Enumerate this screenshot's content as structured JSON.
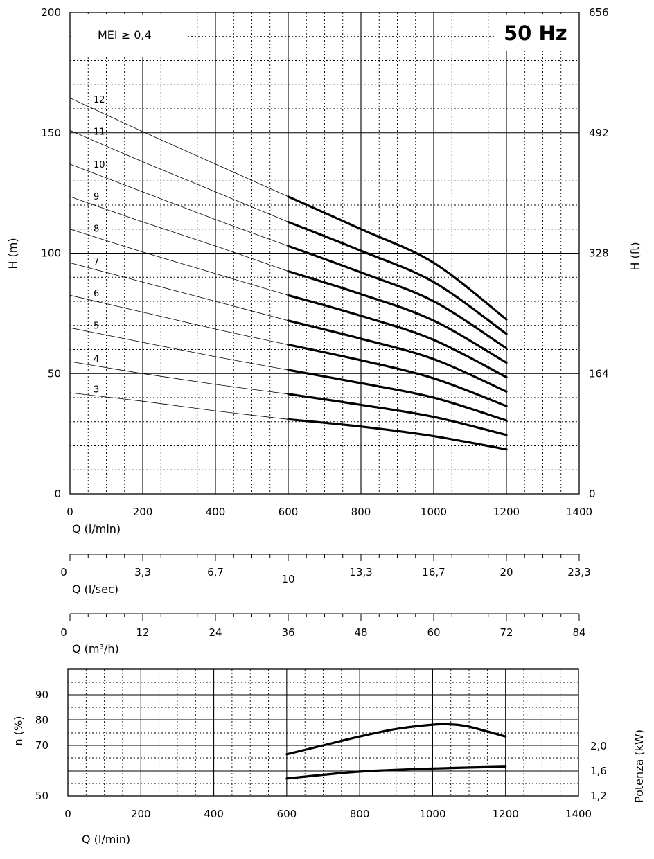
{
  "chart_data": [
    {
      "id": "head",
      "type": "line",
      "title": "50 Hz",
      "annotation": "MEI ≥ 0,4",
      "xlabel": "Q (l/min)",
      "ylabel": "H (m)",
      "y2label": "H (ft)",
      "xlim": [
        0,
        1400
      ],
      "ylim": [
        0,
        200
      ],
      "xticks": [
        0,
        200,
        400,
        600,
        800,
        1000,
        1200,
        1400
      ],
      "yticks": [
        0,
        50,
        100,
        150,
        200
      ],
      "y2ticks": [
        {
          "value": 0,
          "label": "0"
        },
        {
          "value": 50,
          "label": "164"
        },
        {
          "value": 100,
          "label": "328"
        },
        {
          "value": 150,
          "label": "492"
        },
        {
          "value": 200,
          "label": "656"
        }
      ],
      "operating_range": [
        600,
        1200
      ],
      "series": [
        {
          "name": "3",
          "x": [
            0,
            200,
            400,
            600,
            800,
            1000,
            1200
          ],
          "values": [
            42,
            38.5,
            34.5,
            31,
            28,
            24,
            18.5
          ]
        },
        {
          "name": "4",
          "x": [
            0,
            200,
            400,
            600,
            800,
            1000,
            1200
          ],
          "values": [
            55,
            50,
            45.5,
            41.5,
            37,
            32,
            24.5
          ]
        },
        {
          "name": "5",
          "x": [
            0,
            200,
            400,
            600,
            800,
            1000,
            1200
          ],
          "values": [
            69,
            63,
            57,
            51.5,
            46,
            40,
            30.5
          ]
        },
        {
          "name": "6",
          "x": [
            0,
            200,
            400,
            600,
            800,
            1000,
            1200
          ],
          "values": [
            82.5,
            75.5,
            68.5,
            62,
            55.5,
            48,
            36.5
          ]
        },
        {
          "name": "7",
          "x": [
            0,
            200,
            400,
            600,
            800,
            1000,
            1200
          ],
          "values": [
            96,
            88,
            80,
            72,
            64.5,
            56,
            42.5
          ]
        },
        {
          "name": "8",
          "x": [
            0,
            200,
            400,
            600,
            800,
            1000,
            1200
          ],
          "values": [
            110,
            100.5,
            91.5,
            82.5,
            74,
            64,
            48.5
          ]
        },
        {
          "name": "9",
          "x": [
            0,
            200,
            400,
            600,
            800,
            1000,
            1200
          ],
          "values": [
            123.5,
            113,
            103,
            92.5,
            83,
            72,
            54.5
          ]
        },
        {
          "name": "10",
          "x": [
            0,
            200,
            400,
            600,
            800,
            1000,
            1200
          ],
          "values": [
            137,
            125.5,
            114,
            103,
            92,
            80,
            60.5
          ]
        },
        {
          "name": "11",
          "x": [
            0,
            200,
            400,
            600,
            800,
            1000,
            1200
          ],
          "values": [
            151,
            138,
            125.5,
            113,
            101,
            88,
            66.5
          ]
        },
        {
          "name": "12",
          "x": [
            0,
            200,
            400,
            600,
            800,
            1000,
            1200
          ],
          "values": [
            164.5,
            150.5,
            137,
            123.5,
            110,
            96,
            72.5
          ]
        }
      ]
    },
    {
      "id": "flow-lsec",
      "type": "axis",
      "xlabel": "Q (l/sec)",
      "ticks": [
        "0",
        "3,3",
        "6,7",
        "10",
        "13,3",
        "16,7",
        "20",
        "23,3"
      ]
    },
    {
      "id": "flow-m3h",
      "type": "axis",
      "xlabel": "Q (m³/h)",
      "ticks": [
        "0",
        "12",
        "24",
        "36",
        "48",
        "60",
        "72",
        "84"
      ]
    },
    {
      "id": "efficiency-power",
      "type": "line",
      "xlabel": "Q (l/min)",
      "ylabel": "n (%)",
      "y2label": "Potenza (kW)",
      "xlim": [
        0,
        1400
      ],
      "xticks": [
        0,
        200,
        400,
        600,
        800,
        1000,
        1200,
        1400
      ],
      "yticks": [
        50,
        70,
        80,
        90
      ],
      "y2ticks": [
        "1,2",
        "1,6",
        "2,0"
      ],
      "series": [
        {
          "name": "efficiency (%)",
          "x": [
            600,
            700,
            800,
            900,
            1000,
            1050,
            1100,
            1200
          ],
          "values": [
            66.5,
            70,
            73.5,
            76.5,
            78.2,
            78.3,
            77.4,
            73.5
          ]
        },
        {
          "name": "power (kW)",
          "x": [
            600,
            800,
            1000,
            1200
          ],
          "values": [
            1.48,
            1.59,
            1.64,
            1.67
          ]
        }
      ]
    }
  ]
}
